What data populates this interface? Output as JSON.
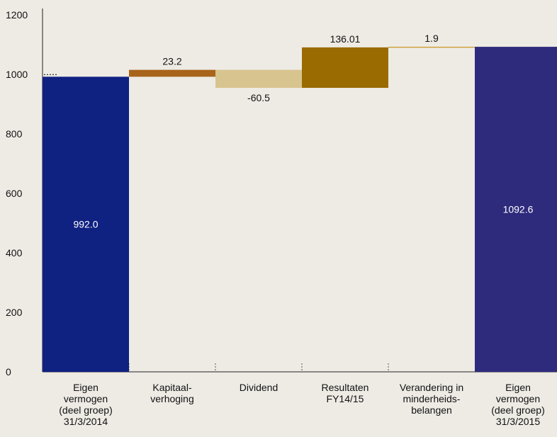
{
  "chart_data": {
    "type": "waterfall",
    "title": "",
    "xlabel": "",
    "ylabel": "",
    "ylim": [
      0,
      1200
    ],
    "yticks": [
      0,
      200,
      400,
      600,
      800,
      1000,
      1200
    ],
    "grid": false,
    "categories": [
      [
        "Eigen",
        "vermogen",
        "(deel groep)",
        "31/3/2014"
      ],
      [
        "Kapitaal-",
        "verhoging"
      ],
      [
        "Dividend"
      ],
      [
        "Resultaten",
        "FY14/15"
      ],
      [
        "Verandering in",
        "minderheids-",
        "belangen"
      ],
      [
        "Eigen",
        "vermogen",
        "(deel groep)",
        "31/3/2015"
      ]
    ],
    "bars": [
      {
        "kind": "total",
        "start": 0,
        "end": 992.0,
        "label": "992.0",
        "color": "#0f2181"
      },
      {
        "kind": "delta",
        "start": 992.0,
        "end": 1015.2,
        "label": "23.2",
        "color": "#a8641a"
      },
      {
        "kind": "delta",
        "start": 1015.2,
        "end": 954.7,
        "label": "-60.5",
        "color": "#d8c48e"
      },
      {
        "kind": "delta",
        "start": 954.7,
        "end": 1090.71,
        "label": "136.01",
        "color": "#9a6b00"
      },
      {
        "kind": "delta",
        "start": 1090.71,
        "end": 1092.61,
        "label": "1.9",
        "color": "#c8941e"
      },
      {
        "kind": "total",
        "start": 0,
        "end": 1092.6,
        "label": "1092.6",
        "color": "#2e2a7c"
      }
    ]
  }
}
